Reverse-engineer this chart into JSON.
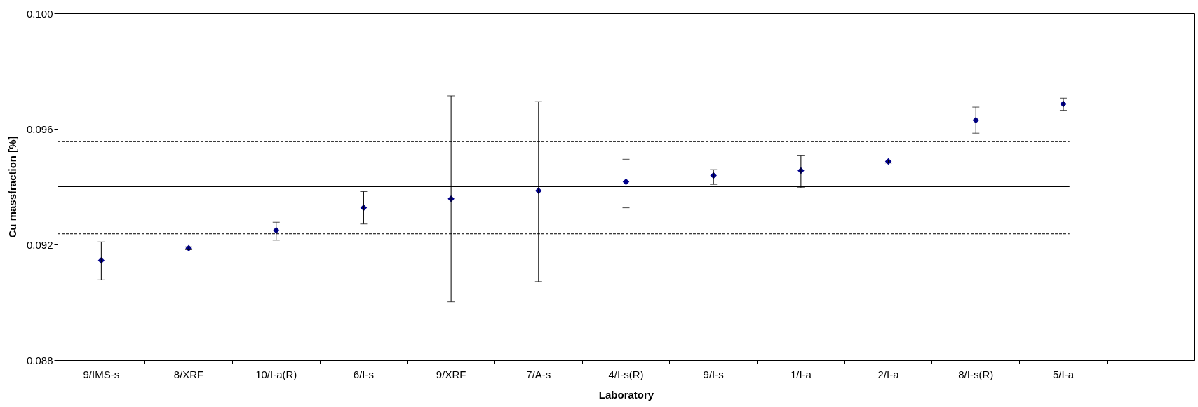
{
  "chart_data": {
    "type": "scatter",
    "xlabel": "Laboratory",
    "ylabel": "Cu massfraction  [%]",
    "categories": [
      "9/IMS-s",
      "8/XRF",
      "10/I-a(R)",
      "6/I-s",
      "9/XRF",
      "7/A-s",
      "4/I-s(R)",
      "9/I-s",
      "1/I-a",
      "2/I-a",
      "8/I-s(R)",
      "5/I-a",
      null
    ],
    "series": [
      {
        "color": "#00008b",
        "values": [
          0.09145,
          0.09187,
          0.09249,
          0.09327,
          0.09358,
          0.09386,
          0.09417,
          0.09439,
          0.09456,
          0.09487,
          0.0963,
          0.09686,
          null
        ],
        "errors": [
          [
            0.09078,
            0.09209
          ],
          [
            0.09182,
            0.09192
          ],
          [
            0.09215,
            0.09277
          ],
          [
            0.09271,
            0.09383
          ],
          [
            0.09002,
            0.09714
          ],
          [
            0.09072,
            0.09694
          ],
          [
            0.09327,
            0.09495
          ],
          [
            0.09408,
            0.09459
          ],
          [
            0.09397,
            0.09509
          ],
          [
            0.09482,
            0.09492
          ],
          [
            0.09585,
            0.09675
          ],
          [
            0.09664,
            0.09706
          ],
          null
        ]
      }
    ],
    "ylim": [
      0.088,
      0.1
    ],
    "yticks": [
      {
        "value": 0.088,
        "label": "0.088"
      },
      {
        "value": 0.092,
        "label": "0.092"
      },
      {
        "value": 0.096,
        "label": "0.096"
      },
      {
        "value": 0.1,
        "label": "0.100"
      }
    ],
    "ref_lines": [
      {
        "axis": "y",
        "value": 0.094,
        "color": "#000000",
        "line_style": "solid"
      },
      {
        "axis": "y",
        "value": 0.09557,
        "color": "#000000",
        "line_style": "dashed"
      },
      {
        "axis": "y",
        "value": 0.09237,
        "color": "#000000",
        "line_style": "dashed"
      }
    ],
    "marker": "diamond",
    "grid": false,
    "legend": false
  }
}
